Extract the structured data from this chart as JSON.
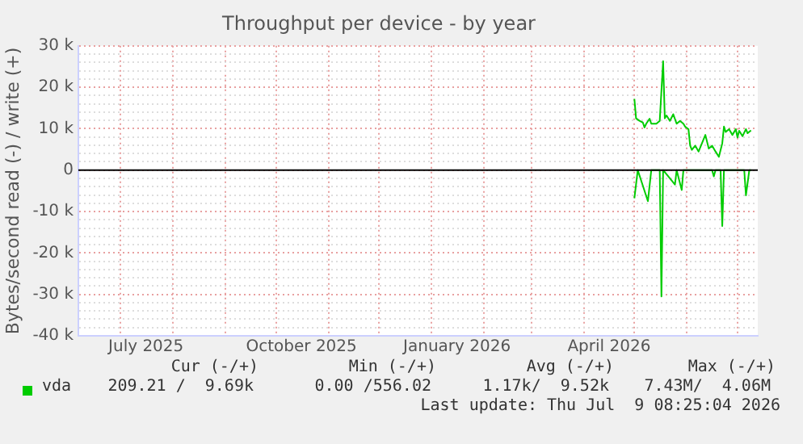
{
  "chart_data": {
    "type": "line",
    "title": "Throughput per device - by year",
    "ylabel": "Bytes/second read (-) / write (+)",
    "xlim": [
      "2025-06-06",
      "2026-07-13"
    ],
    "xticks": [
      {
        "value": "2025-07-01",
        "label": null
      },
      {
        "value": "2025-07-16",
        "label": "July 2025"
      },
      {
        "value": "2025-08-01",
        "label": null
      },
      {
        "value": "2025-09-01",
        "label": null
      },
      {
        "value": "2025-10-01",
        "label": null
      },
      {
        "value": "2025-10-16",
        "label": "October 2025"
      },
      {
        "value": "2025-11-01",
        "label": null
      },
      {
        "value": "2025-12-01",
        "label": null
      },
      {
        "value": "2026-01-01",
        "label": null
      },
      {
        "value": "2026-01-16",
        "label": "January 2026"
      },
      {
        "value": "2026-02-01",
        "label": null
      },
      {
        "value": "2026-03-01",
        "label": null
      },
      {
        "value": "2026-04-01",
        "label": null
      },
      {
        "value": "2026-04-16",
        "label": "April 2026"
      },
      {
        "value": "2026-05-01",
        "label": null
      },
      {
        "value": "2026-06-01",
        "label": null
      },
      {
        "value": "2026-07-01",
        "label": null
      }
    ],
    "ylim": [
      -40000,
      30000
    ],
    "yticks": [
      {
        "value": -40000,
        "label": "-40 k"
      },
      {
        "value": -38000,
        "label": null
      },
      {
        "value": -36000,
        "label": null
      },
      {
        "value": -34000,
        "label": null
      },
      {
        "value": -32000,
        "label": null
      },
      {
        "value": -30000,
        "label": "-30 k"
      },
      {
        "value": -28000,
        "label": null
      },
      {
        "value": -26000,
        "label": null
      },
      {
        "value": -24000,
        "label": null
      },
      {
        "value": -22000,
        "label": null
      },
      {
        "value": -20000,
        "label": "-20 k"
      },
      {
        "value": -18000,
        "label": null
      },
      {
        "value": -16000,
        "label": null
      },
      {
        "value": -14000,
        "label": null
      },
      {
        "value": -12000,
        "label": null
      },
      {
        "value": -10000,
        "label": "-10 k"
      },
      {
        "value": -8000,
        "label": null
      },
      {
        "value": -6000,
        "label": null
      },
      {
        "value": -4000,
        "label": null
      },
      {
        "value": -2000,
        "label": null
      },
      0,
      {
        "value": 2000,
        "label": null
      },
      {
        "value": 4000,
        "label": null
      },
      {
        "value": 6000,
        "label": null
      },
      {
        "value": 8000,
        "label": null
      },
      {
        "value": 10000,
        "label": "10 k"
      },
      {
        "value": 12000,
        "label": null
      },
      {
        "value": 14000,
        "label": null
      },
      {
        "value": 16000,
        "label": null
      },
      {
        "value": 18000,
        "label": null
      },
      {
        "value": 20000,
        "label": "20 k"
      },
      {
        "value": 22000,
        "label": null
      },
      {
        "value": 24000,
        "label": null
      },
      {
        "value": 26000,
        "label": null
      },
      {
        "value": 28000,
        "label": null
      },
      {
        "value": 30000,
        "label": "30 k"
      }
    ],
    "grid": true,
    "legend": "bottom",
    "marker": "none",
    "line_style": "solid",
    "ref_lines": [
      {
        "axis": "y",
        "value": 0,
        "color": "#000000"
      }
    ],
    "series": [
      {
        "name": "vda",
        "color": "#00cc00",
        "x": [
          "2026-05-01",
          "2026-05-02",
          "2026-05-04",
          "2026-05-06",
          "2026-05-07",
          "2026-05-08",
          "2026-05-10",
          "2026-05-11",
          "2026-05-14",
          "2026-05-16",
          "2026-05-18",
          "2026-05-19",
          "2026-05-20",
          "2026-05-22",
          "2026-05-24",
          "2026-05-26",
          "2026-05-28",
          "2026-05-30",
          "2026-05-31",
          "2026-06-02",
          "2026-06-03",
          "2026-06-04",
          "2026-06-06",
          "2026-06-08",
          "2026-06-10",
          "2026-06-12",
          "2026-06-14",
          "2026-06-16",
          "2026-06-18",
          "2026-06-20",
          "2026-06-22",
          "2026-06-23",
          "2026-06-24",
          "2026-06-26",
          "2026-06-28",
          "2026-06-30",
          "2026-07-01",
          "2026-07-02",
          "2026-07-04",
          "2026-07-06",
          "2026-07-07",
          "2026-07-09"
        ],
        "values": [
          17200,
          12500,
          11900,
          11500,
          10300,
          11200,
          12400,
          11200,
          11200,
          11900,
          26300,
          12500,
          13200,
          11900,
          13500,
          11200,
          11900,
          11200,
          10500,
          9900,
          5900,
          4900,
          5900,
          4500,
          6500,
          8500,
          5200,
          5900,
          4500,
          3200,
          6500,
          10500,
          9200,
          9900,
          8500,
          9900,
          7900,
          9500,
          8200,
          9900,
          8900,
          9600
        ]
      },
      {
        "color": "#00cc00",
        "x": [
          "2026-05-01",
          "2026-05-03",
          "2026-05-09",
          "2026-05-11",
          "2026-05-16",
          "2026-05-17",
          "2026-05-18",
          "2026-05-25",
          "2026-05-26",
          "2026-05-29",
          "2026-05-30",
          "2026-06-16",
          "2026-06-17",
          "2026-06-18",
          "2026-06-21",
          "2026-06-22",
          "2026-06-23",
          "2026-07-05",
          "2026-07-06",
          "2026-07-08",
          "2026-07-09"
        ],
        "values": [
          -6800,
          0,
          -7500,
          0,
          0,
          -30500,
          0,
          -3500,
          0,
          -4800,
          0,
          0,
          -1500,
          0,
          0,
          -13500,
          0,
          0,
          -6100,
          0,
          0
        ]
      }
    ],
    "annotations": [
      "Cur (-/+)",
      "Min (-/+)",
      "Avg (-/+)",
      "Max (-/+)",
      "209.21 /  9.69k",
      "0.00 /556.02",
      "1.17k/  9.52k",
      "7.43M/  4.06M",
      "Last update: Thu Jul  9 08:25:04 2026"
    ]
  }
}
